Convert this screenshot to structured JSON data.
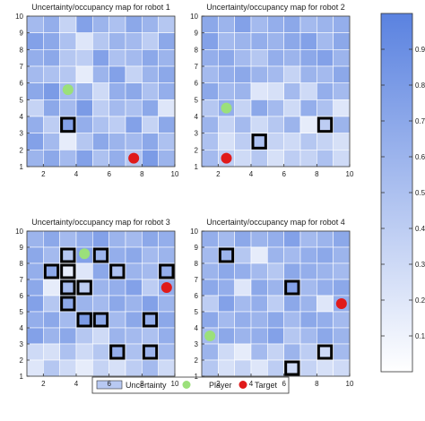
{
  "chart_data": [
    {
      "type": "heatmap",
      "title": "Uncertainty/occupancy map for robot 1",
      "xlim": [
        1,
        10
      ],
      "ylim": [
        1,
        10
      ],
      "xticks": [
        "2",
        "4",
        "6",
        "8",
        "10"
      ],
      "yticks": [
        "1",
        "2",
        "3",
        "4",
        "5",
        "6",
        "7",
        "8",
        "9",
        "10"
      ],
      "grid_values": [
        [
          0.55,
          0.65,
          0.35,
          0.75,
          0.6,
          0.5,
          0.7,
          0.6,
          0.45
        ],
        [
          0.75,
          0.7,
          0.5,
          0.2,
          0.45,
          0.6,
          0.55,
          0.4,
          0.7
        ],
        [
          0.65,
          0.7,
          0.45,
          0.4,
          0.75,
          0.5,
          0.55,
          0.7,
          0.6
        ],
        [
          0.55,
          0.5,
          0.45,
          0.15,
          0.6,
          0.75,
          0.35,
          0.6,
          0.7
        ],
        [
          0.7,
          0.8,
          0.55,
          0.6,
          0.3,
          0.65,
          0.7,
          0.5,
          0.65
        ],
        [
          0.35,
          0.7,
          0.55,
          0.8,
          0.4,
          0.55,
          0.5,
          0.7,
          0.2
        ],
        [
          0.65,
          0.4,
          0.75,
          0.65,
          0.5,
          0.4,
          0.75,
          0.35,
          0.7
        ],
        [
          0.75,
          0.55,
          0.15,
          0.45,
          0.7,
          0.6,
          0.55,
          0.7,
          0.5
        ],
        [
          0.6,
          0.7,
          0.55,
          0.75,
          0.5,
          0.65,
          0.45,
          0.8,
          0.6
        ]
      ],
      "occupied_cells": [
        [
          3,
          3
        ]
      ],
      "player": [
        3.5,
        5.6
      ],
      "target": [
        7.5,
        1.5
      ]
    },
    {
      "type": "heatmap",
      "title": "Uncertainty/occupancy map for robot 2",
      "xlim": [
        1,
        10
      ],
      "ylim": [
        1,
        10
      ],
      "xticks": [
        "2",
        "4",
        "6",
        "8",
        "10"
      ],
      "yticks": [
        "1",
        "2",
        "3",
        "4",
        "5",
        "6",
        "7",
        "8",
        "9",
        "10"
      ],
      "grid_values": [
        [
          0.7,
          0.6,
          0.75,
          0.55,
          0.65,
          0.7,
          0.55,
          0.6,
          0.65
        ],
        [
          0.75,
          0.55,
          0.6,
          0.65,
          0.6,
          0.7,
          0.75,
          0.55,
          0.7
        ],
        [
          0.65,
          0.7,
          0.55,
          0.45,
          0.65,
          0.6,
          0.7,
          0.75,
          0.6
        ],
        [
          0.55,
          0.65,
          0.7,
          0.6,
          0.55,
          0.35,
          0.6,
          0.55,
          0.7
        ],
        [
          0.7,
          0.55,
          0.6,
          0.2,
          0.25,
          0.55,
          0.3,
          0.65,
          0.55
        ],
        [
          0.45,
          0.65,
          0.35,
          0.7,
          0.55,
          0.3,
          0.65,
          0.5,
          0.2
        ],
        [
          0.6,
          0.35,
          0.55,
          0.3,
          0.45,
          0.6,
          0.15,
          0.4,
          0.6
        ],
        [
          0.5,
          0.25,
          0.4,
          0.5,
          0.35,
          0.3,
          0.45,
          0.35,
          0.25
        ],
        [
          0.55,
          0.4,
          0.3,
          0.45,
          0.25,
          0.4,
          0.35,
          0.5,
          0.3
        ]
      ],
      "occupied_cells": [
        [
          4,
          2
        ],
        [
          8,
          3
        ]
      ],
      "player": [
        2.5,
        4.5
      ],
      "target": [
        2.5,
        1.5
      ]
    },
    {
      "type": "heatmap",
      "title": "Uncertainty/occupancy map for robot 3",
      "xlim": [
        1,
        10
      ],
      "ylim": [
        1,
        10
      ],
      "xticks": [
        "2",
        "4",
        "6",
        "8",
        "10"
      ],
      "yticks": [
        "1",
        "2",
        "3",
        "4",
        "5",
        "6",
        "7",
        "8",
        "9",
        "10"
      ],
      "grid_values": [
        [
          0.6,
          0.7,
          0.55,
          0.65,
          0.75,
          0.6,
          0.55,
          0.7,
          0.65
        ],
        [
          0.7,
          0.55,
          0.45,
          0.75,
          0.6,
          0.65,
          0.7,
          0.55,
          0.6
        ],
        [
          0.65,
          0.7,
          0.15,
          0.2,
          0.7,
          0.5,
          0.6,
          0.55,
          0.65
        ],
        [
          0.7,
          0.15,
          0.55,
          0.4,
          0.6,
          0.65,
          0.75,
          0.4,
          0.65
        ],
        [
          0.75,
          0.45,
          0.7,
          0.6,
          0.55,
          0.7,
          0.6,
          0.75,
          0.6
        ],
        [
          0.65,
          0.7,
          0.55,
          0.8,
          0.7,
          0.55,
          0.7,
          0.65,
          0.7
        ],
        [
          0.75,
          0.6,
          0.7,
          0.45,
          0.3,
          0.6,
          0.55,
          0.5,
          0.65
        ],
        [
          0.3,
          0.25,
          0.5,
          0.3,
          0.45,
          0.65,
          0.5,
          0.6,
          0.55
        ],
        [
          0.2,
          0.45,
          0.3,
          0.15,
          0.35,
          0.25,
          0.4,
          0.55,
          0.3
        ]
      ],
      "occupied_cells": [
        [
          3,
          7
        ],
        [
          3,
          8
        ],
        [
          3,
          6
        ],
        [
          3,
          5
        ],
        [
          2,
          7
        ],
        [
          4,
          6
        ],
        [
          5,
          8
        ],
        [
          6,
          7
        ],
        [
          4,
          4
        ],
        [
          5,
          4
        ],
        [
          8,
          4
        ],
        [
          6,
          2
        ],
        [
          8,
          2
        ],
        [
          9,
          7
        ]
      ],
      "player": [
        4.5,
        8.6
      ],
      "target": [
        9.5,
        6.5
      ]
    },
    {
      "type": "heatmap",
      "title": "Uncertainty/occupancy map for robot 4",
      "xlim": [
        1,
        10
      ],
      "ylim": [
        1,
        10
      ],
      "xticks": [
        "2",
        "4",
        "6",
        "8",
        "10"
      ],
      "yticks": [
        "1",
        "2",
        "3",
        "4",
        "5",
        "6",
        "7",
        "8",
        "9",
        "10"
      ],
      "grid_values": [
        [
          0.65,
          0.55,
          0.7,
          0.6,
          0.65,
          0.75,
          0.55,
          0.6,
          0.7
        ],
        [
          0.55,
          0.6,
          0.45,
          0.15,
          0.6,
          0.55,
          0.65,
          0.7,
          0.6
        ],
        [
          0.6,
          0.7,
          0.65,
          0.55,
          0.45,
          0.7,
          0.65,
          0.6,
          0.55
        ],
        [
          0.7,
          0.65,
          0.2,
          0.7,
          0.6,
          0.75,
          0.55,
          0.65,
          0.7
        ],
        [
          0.4,
          0.75,
          0.55,
          0.65,
          0.4,
          0.7,
          0.6,
          0.2,
          0.65
        ],
        [
          0.7,
          0.55,
          0.65,
          0.6,
          0.7,
          0.55,
          0.7,
          0.65,
          0.55
        ],
        [
          0.55,
          0.7,
          0.6,
          0.65,
          0.75,
          0.45,
          0.55,
          0.7,
          0.6
        ],
        [
          0.6,
          0.3,
          0.15,
          0.55,
          0.35,
          0.6,
          0.4,
          0.3,
          0.55
        ],
        [
          0.45,
          0.25,
          0.35,
          0.2,
          0.4,
          0.3,
          0.35,
          0.25,
          0.3
        ]
      ],
      "occupied_cells": [
        [
          2,
          8
        ],
        [
          6,
          6
        ],
        [
          6,
          1
        ],
        [
          8,
          2
        ]
      ],
      "player": [
        1.5,
        3.5
      ],
      "target": [
        9.5,
        5.5
      ]
    }
  ],
  "colorbar": {
    "ticks": [
      "0.1",
      "0.2",
      "0.3",
      "0.4",
      "0.5",
      "0.6",
      "0.7",
      "0.8",
      "0.9"
    ],
    "range": [
      0,
      1
    ],
    "color_low": "#ffffff",
    "color_high": "#5a82e0"
  },
  "legend": {
    "items": [
      {
        "label": "Uncertainty",
        "marker": "rect",
        "color": "#b8c9f2"
      },
      {
        "label": "Player",
        "marker": "circle",
        "color": "#9be07a"
      },
      {
        "label": "Target",
        "marker": "circle",
        "color": "#e01a1a"
      }
    ],
    "placement": "bottom-center"
  }
}
